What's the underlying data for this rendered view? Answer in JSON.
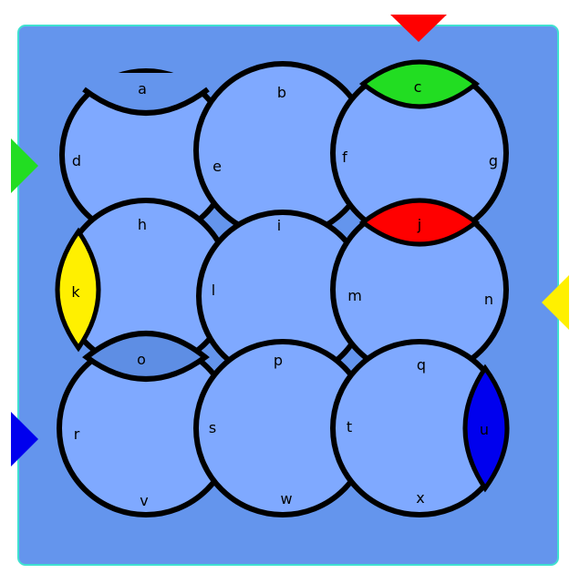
{
  "colors": {
    "board_fill": "#6495ED",
    "board_border": "#40E0D0",
    "tile_fill": "#7FA9FF",
    "tile_dark": "#5E8EE4",
    "outline": "#000000",
    "red": "#FF0000",
    "green": "#22DD22",
    "yellow": "#FFF000",
    "blue": "#0000EE"
  },
  "labels": {
    "a": "a",
    "b": "b",
    "c": "c",
    "d": "d",
    "e": "e",
    "f": "f",
    "g": "g",
    "h": "h",
    "i": "i",
    "j": "j",
    "k": "k",
    "l": "l",
    "m": "m",
    "n": "n",
    "o": "o",
    "p": "p",
    "q": "q",
    "r": "r",
    "s": "s",
    "t": "t",
    "u": "u",
    "v": "v",
    "w": "w",
    "x": "x"
  },
  "arrows": [
    {
      "id": "top",
      "color": "red"
    },
    {
      "id": "left-upper",
      "color": "green"
    },
    {
      "id": "right",
      "color": "yellow"
    },
    {
      "id": "left-lower",
      "color": "blue"
    }
  ]
}
